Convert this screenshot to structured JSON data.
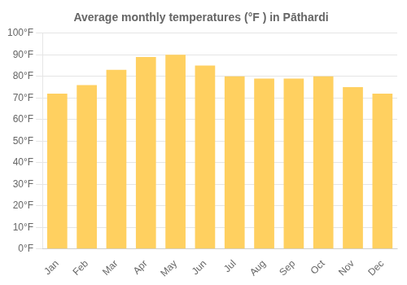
{
  "chart_data": {
    "type": "bar",
    "title": "Average monthly temperatures (°F ) in Pāthardi",
    "categories": [
      "Jan",
      "Feb",
      "Mar",
      "Apr",
      "May",
      "Jun",
      "Jul",
      "Aug",
      "Sep",
      "Oct",
      "Nov",
      "Dec"
    ],
    "values": [
      72,
      76,
      83,
      89,
      90,
      85,
      80,
      79,
      79,
      80,
      75,
      72
    ],
    "color": "#FFD060",
    "ylim": [
      0,
      100
    ],
    "yticks": [
      {
        "value": 0,
        "label": "0°F"
      },
      {
        "value": 10,
        "label": "10°F"
      },
      {
        "value": 20,
        "label": "20°F"
      },
      {
        "value": 30,
        "label": "30°F"
      },
      {
        "value": 40,
        "label": "40°F"
      },
      {
        "value": 50,
        "label": "50°F"
      },
      {
        "value": 60,
        "label": "60°F"
      },
      {
        "value": 70,
        "label": "70°F"
      },
      {
        "value": 80,
        "label": "80°F"
      },
      {
        "value": 90,
        "label": "90°F"
      },
      {
        "value": 100,
        "label": "100°F"
      }
    ],
    "grid": true
  }
}
